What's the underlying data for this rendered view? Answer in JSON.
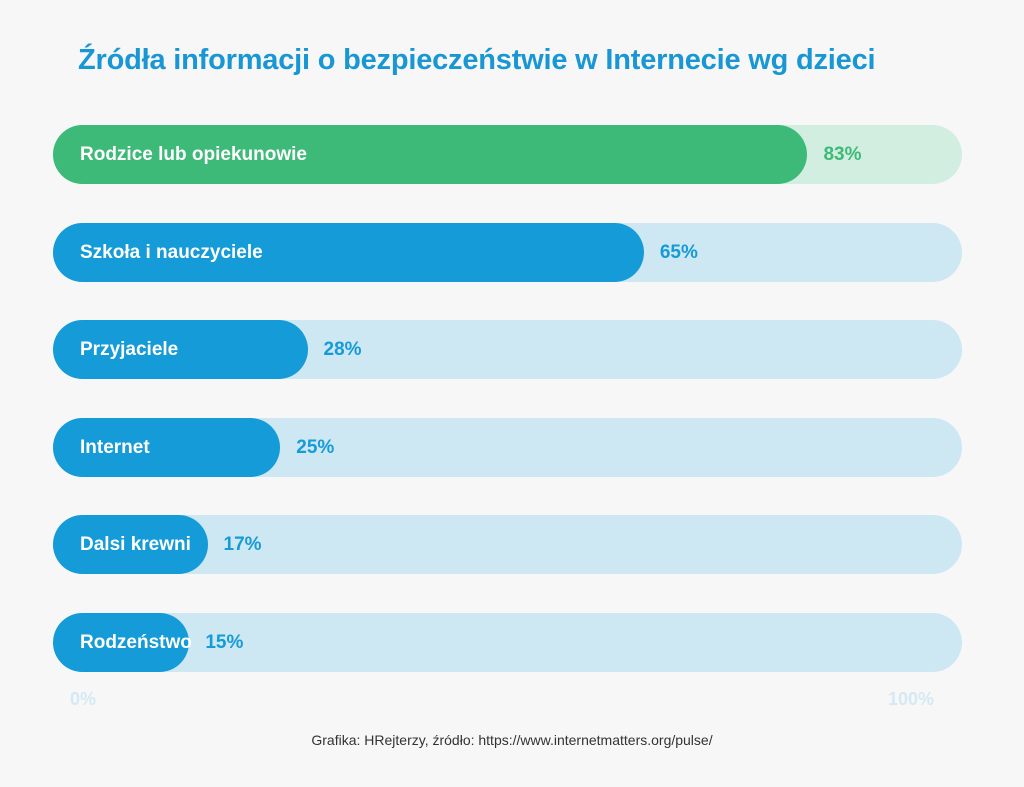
{
  "chart_data": {
    "type": "bar",
    "title": "Źródła informacji o bezpieczeństwie w Internecie wg dzieci",
    "categories": [
      "Rodzice lub opiekunowie",
      "Szkoła i nauczyciele",
      "Przyjaciele",
      "Internet",
      "Dalsi krewni",
      "Rodzeństwo"
    ],
    "values": [
      83,
      65,
      28,
      25,
      17,
      15
    ],
    "value_labels": [
      "83%",
      "65%",
      "28%",
      "25%",
      "17%",
      "15%"
    ],
    "xlim": [
      0,
      100
    ],
    "axis_labels": {
      "min": "0%",
      "max": "100%"
    },
    "orientation": "horizontal",
    "highlight_index": 0,
    "colors": {
      "bar": "#149bd8",
      "track": "#cde7f3",
      "highlight_bar": "#3dba78",
      "highlight_track": "#d2eee0",
      "title": "#1897d4"
    }
  },
  "source": "Grafika: HRejterzy, źródło: https://www.internetmatters.org/pulse/"
}
